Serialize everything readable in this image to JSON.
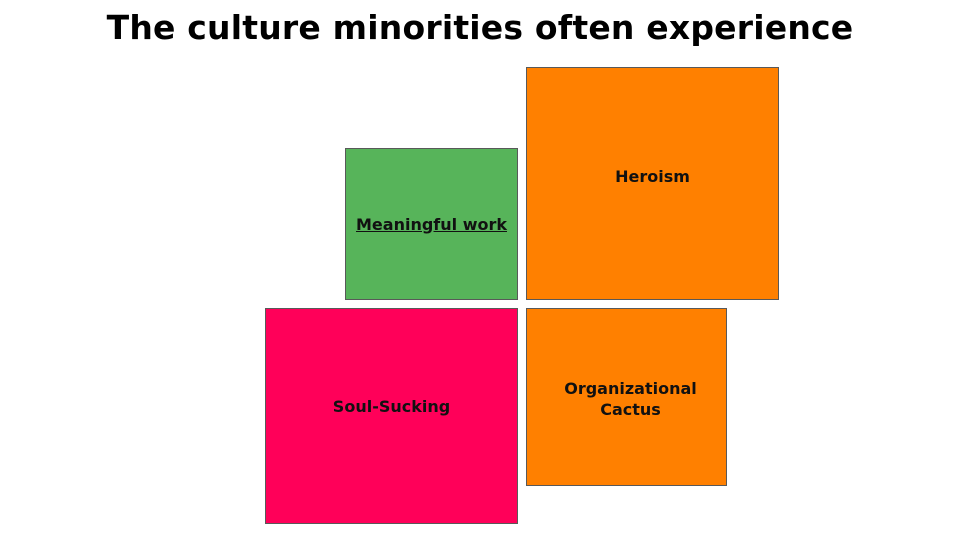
{
  "slide": {
    "title": "The culture minorities often experience"
  },
  "boxes": {
    "meaningful": {
      "label": "Meaningful work",
      "color": "#57b45a",
      "is_link": true
    },
    "heroism": {
      "label": "Heroism",
      "color": "#ff8000"
    },
    "soul": {
      "label": "Soul-Sucking",
      "color": "#ff0059"
    },
    "cactus": {
      "label": "Organizational Cactus",
      "color": "#ff8000"
    }
  }
}
